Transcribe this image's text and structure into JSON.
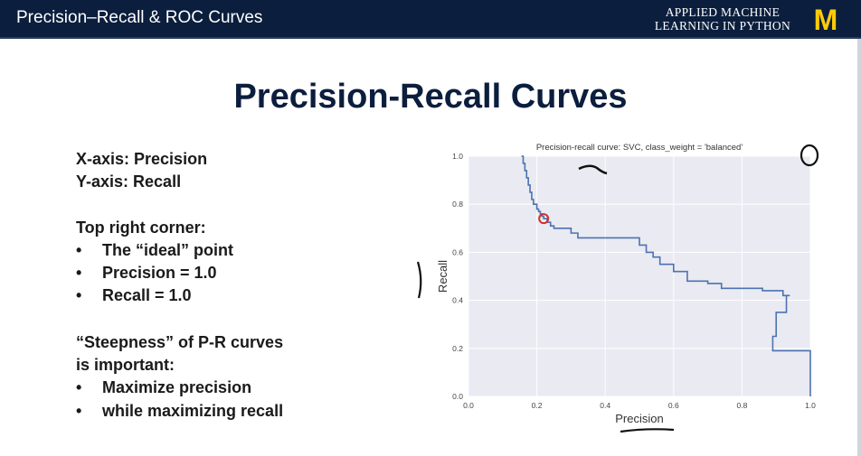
{
  "header": {
    "title": "Precision–Recall & ROC Curves",
    "brand_line1": "APPLIED MACHINE",
    "brand_line2": "LEARNING IN PYTHON",
    "logo_text": "M",
    "colors": {
      "bar": "#0b1e3d",
      "logo": "#ffcb05"
    }
  },
  "slide": {
    "title": "Precision-Recall Curves",
    "xaxis_line": "X-axis:  Precision",
    "yaxis_line": "Y-axis:  Recall",
    "corner_heading": "Top right corner:",
    "corner_bullets": [
      "The “ideal” point",
      "Precision = 1.0",
      "Recall = 1.0"
    ],
    "steep_line1": "“Steepness” of P-R curves",
    "steep_line2": "is important:",
    "steep_bullets": [
      "Maximize precision",
      "while maximizing recall"
    ],
    "bullet_char": "•"
  },
  "chart_data": {
    "type": "line",
    "title": "Precision-recall curve: SVC, class_weight = 'balanced'",
    "xlabel": "Precision",
    "ylabel": "Recall",
    "xlim": [
      0.0,
      1.0
    ],
    "ylim": [
      0.0,
      1.0
    ],
    "xticks": [
      "0.0",
      "0.2",
      "0.4",
      "0.6",
      "0.8",
      "1.0"
    ],
    "yticks": [
      "0.0",
      "0.2",
      "0.4",
      "0.6",
      "0.8",
      "1.0"
    ],
    "grid": true,
    "line_color": "#4c72b0",
    "background": "#eaeaf2",
    "series": [
      {
        "x": [
          0.155,
          0.16,
          0.165,
          0.17,
          0.175,
          0.18,
          0.185,
          0.19,
          0.2,
          0.205,
          0.21,
          0.215,
          0.22,
          0.23,
          0.24,
          0.25,
          0.26,
          0.3,
          0.32,
          0.48,
          0.5,
          0.52,
          0.54,
          0.56,
          0.6,
          0.64,
          0.7,
          0.74,
          0.86,
          0.92,
          0.94,
          0.93,
          0.9,
          0.89,
          0.99,
          1.0
        ],
        "y": [
          1.0,
          0.97,
          0.94,
          0.91,
          0.88,
          0.85,
          0.82,
          0.8,
          0.78,
          0.77,
          0.76,
          0.75,
          0.74,
          0.725,
          0.71,
          0.7,
          0.7,
          0.68,
          0.66,
          0.66,
          0.63,
          0.6,
          0.58,
          0.55,
          0.52,
          0.48,
          0.47,
          0.45,
          0.44,
          0.42,
          0.42,
          0.35,
          0.25,
          0.19,
          0.19,
          0.0
        ]
      }
    ],
    "highlight_point": {
      "x": 0.22,
      "y": 0.74,
      "color": "#d0312d"
    }
  }
}
